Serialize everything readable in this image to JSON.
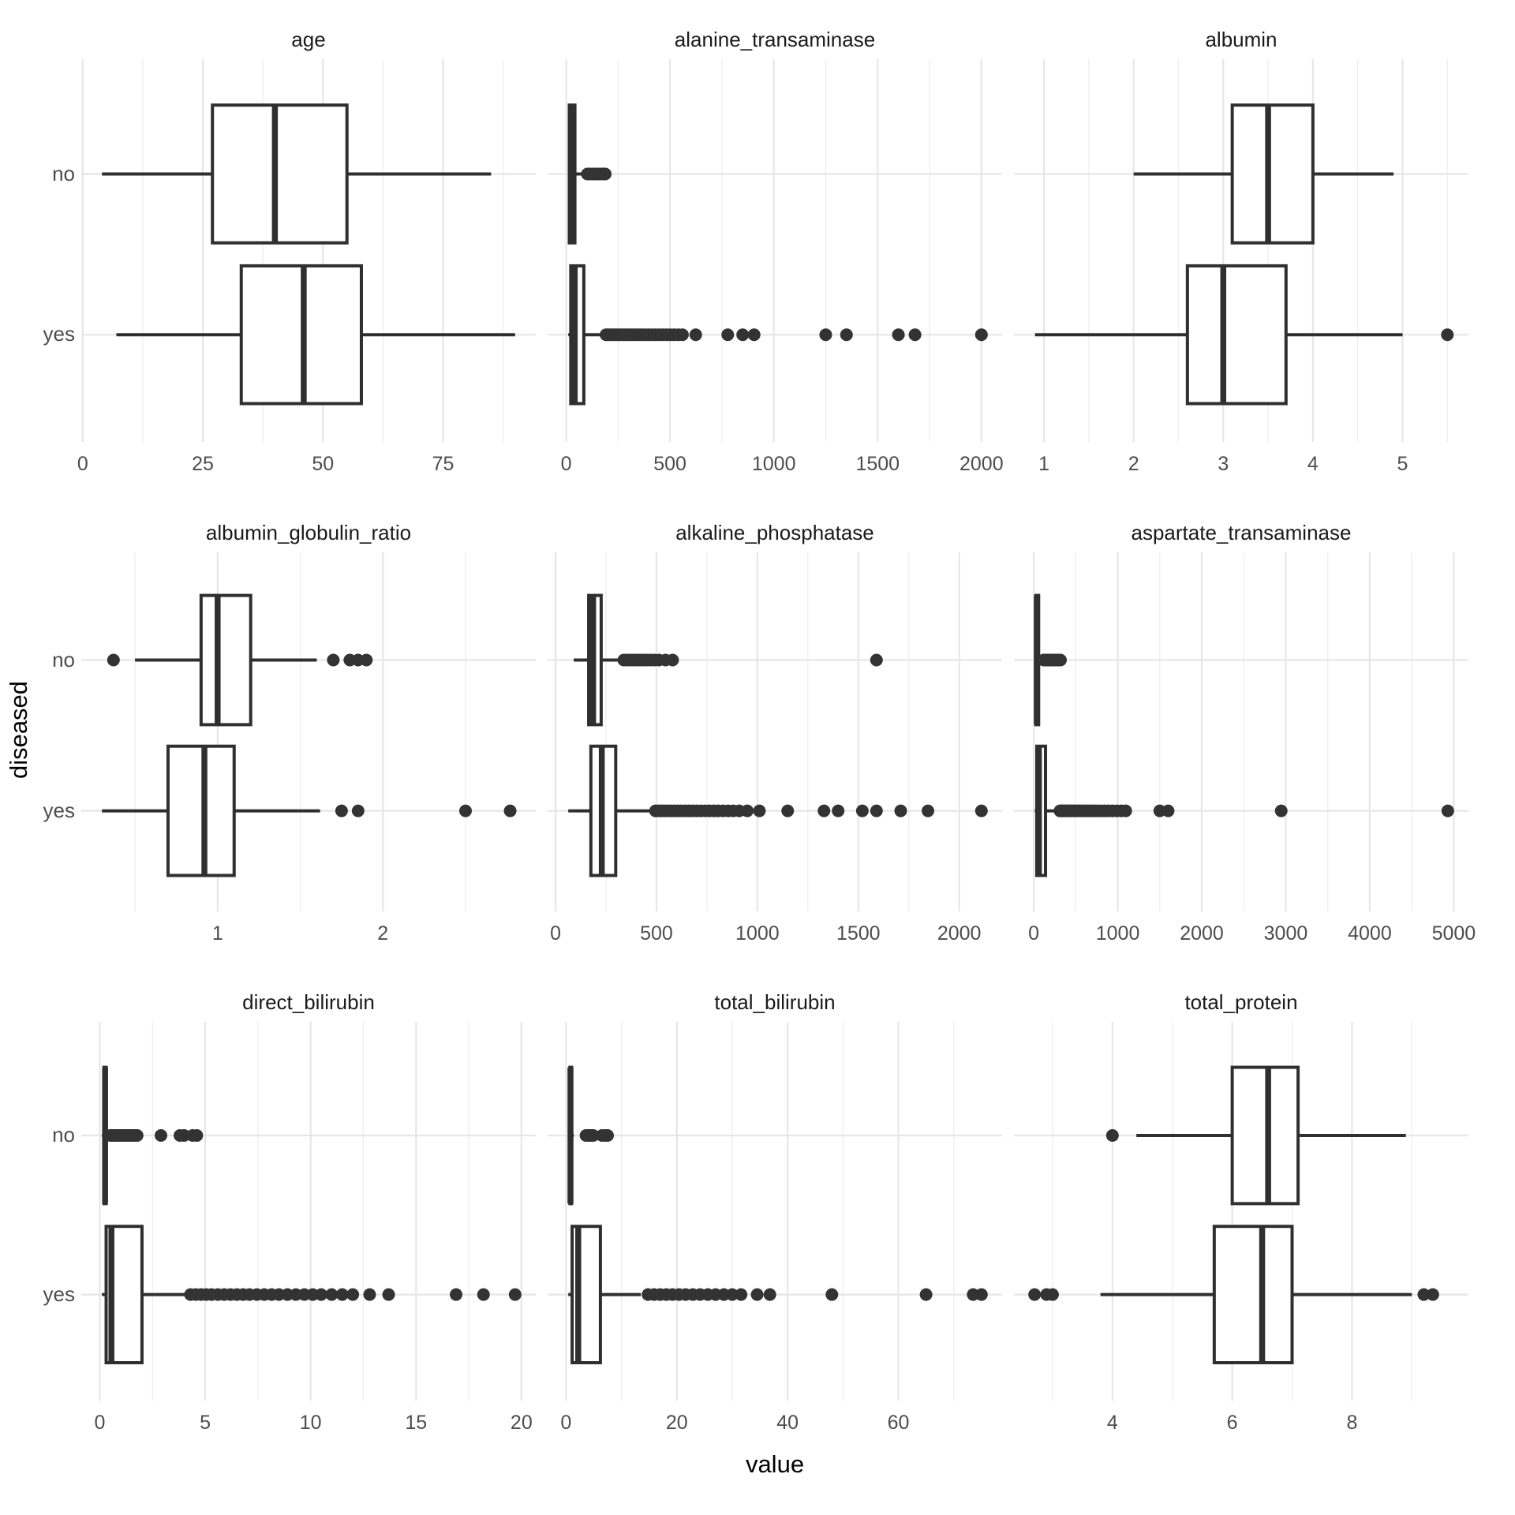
{
  "figure": {
    "y_axis_title": "diseased",
    "x_axis_title": "value",
    "categories": [
      "no",
      "yes"
    ]
  },
  "style": {
    "box_stroke": "#2f2f2f",
    "box_fill": "#ffffff",
    "outlier_fill": "#333333",
    "grid_major": "#e6e6e6",
    "grid_minor": "#efefef",
    "tick_label_color": "#4d4d4d",
    "strip_text_color": "#1a1a1a",
    "background": "#ffffff"
  },
  "chart_data": {
    "type": "boxplot-faceted",
    "orientation": "horizontal",
    "facet_layout": "3x3",
    "grid": true,
    "legend": "none",
    "xlabel": "value",
    "ylabel": "diseased",
    "categories": [
      "no",
      "yes"
    ],
    "panels": [
      {
        "title": "age",
        "domain": [
          -0.3,
          94.3
        ],
        "ticks": [
          0,
          25,
          50,
          75
        ],
        "groups": {
          "no": {
            "min": 4,
            "q1": 27,
            "med": 40,
            "q3": 55,
            "max": 85,
            "outliers": []
          },
          "yes": {
            "min": 7,
            "q1": 33,
            "med": 46,
            "q3": 58,
            "max": 90,
            "outliers": []
          }
        }
      },
      {
        "title": "alanine_transaminase",
        "domain": [
          -89.5,
          2099.5
        ],
        "ticks": [
          0,
          500,
          1000,
          1500,
          2000
        ],
        "groups": {
          "no": {
            "min": 10,
            "q1": 15,
            "med": 27,
            "q3": 42,
            "max": 80,
            "outliers": [
              102,
              114,
              126,
              137,
              148,
              158,
              168,
              178,
              188
            ]
          },
          "yes": {
            "min": 10,
            "q1": 22,
            "med": 41,
            "q3": 85,
            "max": 178,
            "outliers": [
              192,
              202,
              212,
              222,
              233,
              244,
              255,
              266,
              278,
              290,
              302,
              315,
              328,
              341,
              355,
              369,
              384,
              399,
              415,
              431,
              448,
              465,
              483,
              501,
              520,
              540,
              560,
              624,
              778,
              850,
              905,
              1250,
              1350,
              1600,
              1680,
              2000
            ]
          }
        }
      },
      {
        "title": "albumin",
        "domain": [
          0.665,
          5.735
        ],
        "ticks": [
          1,
          2,
          3,
          4,
          5
        ],
        "groups": {
          "no": {
            "min": 2.0,
            "q1": 3.1,
            "med": 3.5,
            "q3": 4.0,
            "max": 4.9,
            "outliers": []
          },
          "yes": {
            "min": 0.9,
            "q1": 2.6,
            "med": 3.0,
            "q3": 3.7,
            "max": 5.0,
            "outliers": [
              5.5
            ]
          }
        }
      },
      {
        "title": "albumin_globulin_ratio",
        "domain": [
          0.175,
          2.925
        ],
        "ticks": [
          1,
          2
        ],
        "groups": {
          "no": {
            "min": 0.5,
            "q1": 0.9,
            "med": 1.0,
            "q3": 1.2,
            "max": 1.6,
            "outliers": [
              0.37,
              1.7,
              1.8,
              1.85,
              1.9
            ]
          },
          "yes": {
            "min": 0.3,
            "q1": 0.7,
            "med": 0.92,
            "q3": 1.1,
            "max": 1.62,
            "outliers": [
              1.75,
              1.85,
              2.5,
              2.77
            ]
          }
        }
      },
      {
        "title": "alkaline_phosphatase",
        "domain": [
          -39.4,
          2212.4
        ],
        "ticks": [
          0,
          500,
          1000,
          1500,
          2000
        ],
        "groups": {
          "no": {
            "min": 90,
            "q1": 164,
            "med": 186,
            "q3": 226,
            "max": 316,
            "outliers": [
              338,
              354,
              370,
              386,
              402,
              418,
              434,
              452,
              470,
              490,
              512,
              545,
              580,
              1590
            ]
          },
          "yes": {
            "min": 63,
            "q1": 175,
            "med": 229,
            "q3": 298,
            "max": 480,
            "outliers": [
              495,
              510,
              525,
              540,
              556,
              572,
              589,
              606,
              624,
              642,
              661,
              680,
              700,
              720,
              741,
              762,
              784,
              806,
              830,
              855,
              880,
              910,
              950,
              1010,
              1150,
              1330,
              1400,
              1520,
              1590,
              1710,
              1845,
              2110
            ]
          }
        }
      },
      {
        "title": "aspartate_transaminase",
        "domain": [
          -235.9,
          5174.9
        ],
        "ticks": [
          0,
          1000,
          2000,
          3000,
          4000,
          5000
        ],
        "groups": {
          "no": {
            "min": 10,
            "q1": 25,
            "med": 36,
            "q3": 58,
            "max": 105,
            "outliers": [
              118,
              132,
              146,
              160,
              175,
              190,
              206,
              222,
              239,
              257,
              275,
              295,
              318
            ]
          },
          "yes": {
            "min": 12,
            "q1": 36,
            "med": 61,
            "q3": 140,
            "max": 295,
            "outliers": [
              312,
              328,
              345,
              362,
              380,
              399,
              419,
              440,
              462,
              485,
              510,
              536,
              563,
              592,
              622,
              654,
              688,
              724,
              762,
              802,
              845,
              890,
              938,
              988,
              1040,
              1095,
              1500,
              1600,
              2946,
              4929
            ]
          }
        }
      },
      {
        "title": "direct_bilirubin",
        "domain": [
          -0.88,
          20.68
        ],
        "ticks": [
          0,
          5,
          10,
          15,
          20
        ],
        "groups": {
          "no": {
            "min": 0.1,
            "q1": 0.2,
            "med": 0.25,
            "q3": 0.3,
            "max": 0.45,
            "outliers": [
              0.5,
              0.58,
              0.66,
              0.74,
              0.82,
              0.9,
              0.98,
              1.07,
              1.16,
              1.25,
              1.35,
              1.45,
              1.55,
              1.66,
              1.77,
              2.9,
              3.8,
              4.0,
              4.4,
              4.6
            ]
          },
          "yes": {
            "min": 0.1,
            "q1": 0.3,
            "med": 0.55,
            "q3": 2.0,
            "max": 4.1,
            "outliers": [
              4.3,
              4.55,
              4.8,
              5.05,
              5.3,
              5.6,
              5.9,
              6.2,
              6.5,
              6.8,
              7.1,
              7.45,
              7.8,
              8.15,
              8.5,
              8.9,
              9.3,
              9.7,
              10.1,
              10.5,
              11.0,
              11.5,
              12.0,
              12.8,
              13.7,
              16.9,
              18.2,
              19.7
            ]
          }
        }
      },
      {
        "title": "total_bilirubin",
        "domain": [
          -3.33,
          78.73
        ],
        "ticks": [
          0,
          20,
          40,
          60
        ],
        "groups": {
          "no": {
            "min": 0.4,
            "q1": 0.7,
            "med": 0.8,
            "q3": 1.0,
            "max": 1.4,
            "outliers": [
              3.6,
              3.9,
              4.2,
              4.5,
              4.9,
              6.5,
              7.0,
              7.5
            ]
          },
          "yes": {
            "min": 0.4,
            "q1": 1.1,
            "med": 2.2,
            "q3": 6.2,
            "max": 13.5,
            "outliers": [
              14.8,
              15.9,
              17.0,
              18.1,
              19.2,
              20.4,
              21.6,
              22.9,
              24.2,
              25.6,
              27.0,
              28.5,
              30.0,
              31.6,
              34.5,
              36.8,
              48.0,
              65.0,
              73.5,
              75.0
            ]
          }
        }
      },
      {
        "title": "total_protein",
        "domain": [
          2.355,
          9.945
        ],
        "ticks": [
          4,
          6,
          8
        ],
        "groups": {
          "no": {
            "min": 4.4,
            "q1": 6.0,
            "med": 6.6,
            "q3": 7.1,
            "max": 8.9,
            "outliers": [
              4.0
            ]
          },
          "yes": {
            "min": 3.8,
            "q1": 5.7,
            "med": 6.5,
            "q3": 7.0,
            "max": 9.0,
            "outliers": [
              2.7,
              2.9,
              3.0,
              9.2,
              9.35
            ]
          }
        }
      }
    ]
  }
}
